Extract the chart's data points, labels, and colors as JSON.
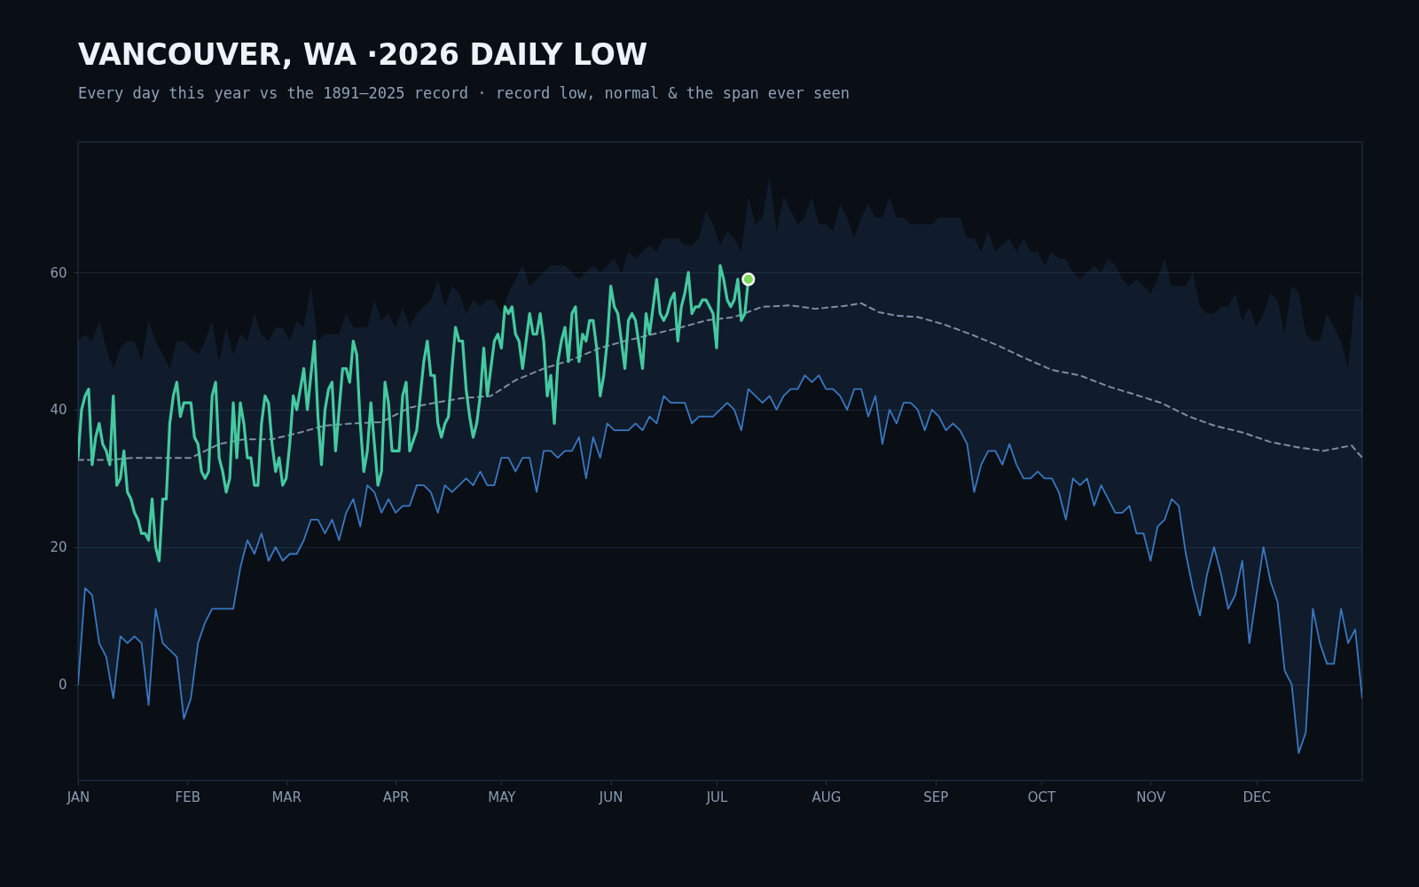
{
  "chart_data": {
    "type": "line",
    "title": "VANCOUVER, WA ·2026 DAILY LOW",
    "subtitle": "Every day this year vs the 1891–2025 record · record low, normal & the span ever seen",
    "xlim": [
      "--01-01",
      "--12-31"
    ],
    "xticks": [
      {
        "value": "--01-01",
        "label": "JAN"
      },
      {
        "value": "--02-01",
        "label": "FEB"
      },
      {
        "value": "--03-01",
        "label": "MAR"
      },
      {
        "value": "--04-01",
        "label": "APR"
      },
      {
        "value": "--05-01",
        "label": "MAY"
      },
      {
        "value": "--06-01",
        "label": "JUN"
      },
      {
        "value": "--07-01",
        "label": "JUL"
      },
      {
        "value": "--08-01",
        "label": "AUG"
      },
      {
        "value": "--09-01",
        "label": "SEP"
      },
      {
        "value": "--10-01",
        "label": "OCT"
      },
      {
        "value": "--11-01",
        "label": "NOV"
      },
      {
        "value": "--12-01",
        "label": "DEC"
      }
    ],
    "ylim": [
      -14,
      79
    ],
    "yticks": [
      0,
      20,
      40,
      60
    ],
    "grid": "y",
    "series": [
      {
        "color": "#3a78c2",
        "x": [
          "--01-01",
          "--01-03",
          "--01-05",
          "--01-07",
          "--01-09",
          "--01-11",
          "--01-13",
          "--01-15",
          "--01-17",
          "--01-19",
          "--01-21",
          "--01-23",
          "--01-25",
          "--01-27",
          "--01-29",
          "--01-31",
          "--02-02",
          "--02-04",
          "--02-06",
          "--02-08",
          "--02-10",
          "--02-12",
          "--02-14",
          "--02-16",
          "--02-18",
          "--02-20",
          "--02-22",
          "--02-24",
          "--02-26",
          "--02-28",
          "--03-02",
          "--03-04",
          "--03-06",
          "--03-08",
          "--03-10",
          "--03-12",
          "--03-14",
          "--03-16",
          "--03-18",
          "--03-20",
          "--03-22",
          "--03-24",
          "--03-26",
          "--03-28",
          "--03-30",
          "--04-01",
          "--04-03",
          "--04-05",
          "--04-07",
          "--04-09",
          "--04-11",
          "--04-13",
          "--04-15",
          "--04-17",
          "--04-19",
          "--04-21",
          "--04-23",
          "--04-25",
          "--04-27",
          "--04-29",
          "--05-01",
          "--05-03",
          "--05-05",
          "--05-07",
          "--05-09",
          "--05-11",
          "--05-13",
          "--05-15",
          "--05-17",
          "--05-19",
          "--05-21",
          "--05-23",
          "--05-25",
          "--05-27",
          "--05-29",
          "--05-31",
          "--06-02",
          "--06-04",
          "--06-06",
          "--06-08",
          "--06-10",
          "--06-12",
          "--06-14",
          "--06-16",
          "--06-18",
          "--06-20",
          "--06-22",
          "--06-24",
          "--06-26",
          "--06-28",
          "--06-30",
          "--07-02",
          "--07-04",
          "--07-06",
          "--07-08",
          "--07-10",
          "--07-12",
          "--07-14",
          "--07-16",
          "--07-18",
          "--07-20",
          "--07-22",
          "--07-24",
          "--07-26",
          "--07-28",
          "--07-30",
          "--08-01",
          "--08-03",
          "--08-05",
          "--08-07",
          "--08-09",
          "--08-11",
          "--08-13",
          "--08-15",
          "--08-17",
          "--08-19",
          "--08-21",
          "--08-23",
          "--08-25",
          "--08-27",
          "--08-29",
          "--08-31",
          "--09-02",
          "--09-04",
          "--09-06",
          "--09-08",
          "--09-10",
          "--09-12",
          "--09-14",
          "--09-16",
          "--09-18",
          "--09-20",
          "--09-22",
          "--09-24",
          "--09-26",
          "--09-28",
          "--09-30",
          "--10-02",
          "--10-04",
          "--10-06",
          "--10-08",
          "--10-10",
          "--10-12",
          "--10-14",
          "--10-16",
          "--10-18",
          "--10-20",
          "--10-22",
          "--10-24",
          "--10-26",
          "--10-28",
          "--10-30",
          "--11-01",
          "--11-03",
          "--11-05",
          "--11-07",
          "--11-09",
          "--11-11",
          "--11-13",
          "--11-15",
          "--11-17",
          "--11-19",
          "--11-21",
          "--11-23",
          "--11-25",
          "--11-27",
          "--11-29",
          "--12-01",
          "--12-03",
          "--12-05",
          "--12-07",
          "--12-09",
          "--12-11",
          "--12-13",
          "--12-15",
          "--12-17",
          "--12-19",
          "--12-21",
          "--12-23",
          "--12-25",
          "--12-27",
          "--12-29",
          "--12-31"
        ],
        "values": [
          0,
          14,
          13,
          6,
          4,
          -2,
          7,
          6,
          7,
          6,
          -3,
          11,
          6,
          5,
          4,
          -5,
          -2,
          6,
          9,
          11,
          11,
          11,
          11,
          17,
          21,
          19,
          22,
          18,
          20,
          18,
          19,
          19,
          21,
          24,
          24,
          22,
          24,
          21,
          25,
          27,
          23,
          29,
          28,
          25,
          27,
          25,
          26,
          26,
          29,
          29,
          28,
          25,
          29,
          28,
          29,
          30,
          29,
          31,
          29,
          29,
          33,
          33,
          31,
          33,
          33,
          28,
          34,
          34,
          33,
          34,
          34,
          36,
          30,
          36,
          33,
          38,
          37,
          37,
          37,
          38,
          37,
          39,
          38,
          42,
          41,
          41,
          41,
          38,
          39,
          39,
          39,
          40,
          41,
          40,
          37,
          43,
          42,
          41,
          42,
          40,
          42,
          43,
          43,
          45,
          44,
          45,
          43,
          43,
          42,
          40,
          43,
          43,
          39,
          42,
          35,
          40,
          38,
          41,
          41,
          40,
          37,
          40,
          39,
          37,
          38,
          37,
          35,
          28,
          32,
          34,
          34,
          32,
          35,
          32,
          30,
          30,
          31,
          30,
          30,
          28,
          24,
          30,
          29,
          30,
          26,
          29,
          27,
          25,
          25,
          26,
          22,
          22,
          18,
          23,
          24,
          27,
          26,
          19,
          14,
          10,
          16,
          20,
          16,
          11,
          13,
          18,
          6,
          13,
          20,
          15,
          12,
          2,
          0,
          -10,
          -7,
          11,
          6,
          3,
          3,
          11,
          6,
          8,
          -2
        ],
        "lower": [
          0,
          14,
          13,
          6,
          4,
          -2,
          7,
          6,
          7,
          6,
          -3,
          11,
          6,
          5,
          4,
          -5,
          -2,
          6,
          9,
          11,
          11,
          11,
          11,
          17,
          21,
          19,
          22,
          18,
          20,
          18,
          19,
          19,
          21,
          24,
          24,
          22,
          24,
          21,
          25,
          27,
          23,
          29,
          28,
          25,
          27,
          25,
          26,
          26,
          29,
          29,
          28,
          25,
          29,
          28,
          29,
          30,
          29,
          31,
          29,
          29,
          33,
          33,
          31,
          33,
          33,
          28,
          34,
          34,
          33,
          34,
          34,
          36,
          30,
          36,
          33,
          38,
          37,
          37,
          37,
          38,
          37,
          39,
          38,
          42,
          41,
          41,
          41,
          38,
          39,
          39,
          39,
          40,
          41,
          40,
          37,
          43,
          42,
          41,
          42,
          40,
          42,
          43,
          43,
          45,
          44,
          45,
          43,
          43,
          42,
          40,
          43,
          43,
          39,
          42,
          35,
          40,
          38,
          41,
          41,
          40,
          37,
          40,
          39,
          37,
          38,
          37,
          35,
          28,
          32,
          34,
          34,
          32,
          35,
          32,
          30,
          30,
          31,
          30,
          30,
          28,
          24,
          30,
          29,
          30,
          26,
          29,
          27,
          25,
          25,
          26,
          22,
          22,
          18,
          23,
          24,
          27,
          26,
          19,
          14,
          10,
          16,
          20,
          16,
          11,
          13,
          18,
          6,
          13,
          20,
          15,
          12,
          2,
          0,
          -10,
          -7,
          11,
          6,
          3,
          3,
          11,
          6,
          8,
          -2
        ],
        "upper": [
          50,
          51,
          50,
          53,
          49,
          46,
          49,
          50,
          50,
          47,
          53,
          50,
          48,
          46,
          50,
          50,
          49,
          48,
          50,
          53,
          47,
          52,
          48,
          51,
          50,
          54,
          51,
          50,
          52,
          52,
          50,
          53,
          52,
          58,
          50,
          51,
          51,
          51,
          54,
          52,
          52,
          52,
          56,
          53,
          54,
          52,
          55,
          52,
          54,
          55,
          56,
          59,
          55,
          58,
          57,
          54,
          56,
          55,
          56,
          56,
          54,
          57,
          59,
          61,
          58,
          59,
          60,
          61,
          61,
          61,
          60,
          59,
          60,
          61,
          60,
          61,
          62,
          60,
          63,
          62,
          63,
          64,
          63,
          65,
          65,
          65,
          64,
          64,
          65,
          69,
          67,
          64,
          66,
          65,
          63,
          71,
          67,
          68,
          74,
          66,
          71,
          69,
          67,
          68,
          71,
          67,
          67,
          66,
          70,
          68,
          65,
          68,
          70,
          68,
          68,
          71,
          68,
          68,
          67,
          67,
          67,
          67,
          68,
          68,
          68,
          68,
          65,
          65,
          63,
          66,
          63,
          64,
          65,
          63,
          65,
          63,
          63,
          61,
          63,
          62,
          62,
          60,
          59,
          60,
          61,
          60,
          62,
          61,
          59,
          58,
          59,
          58,
          57,
          59,
          62,
          58,
          58,
          58,
          60,
          55,
          54,
          54,
          55,
          55,
          57,
          53,
          55,
          52,
          54,
          57,
          56,
          51,
          58,
          57,
          51,
          50,
          50,
          54,
          52,
          50,
          46,
          57,
          56
        ]
      },
      {
        "color": "#7f8ea3",
        "line_style": "dashed",
        "x": [
          "--01-01",
          "--01-10",
          "--01-17",
          "--01-25",
          "--02-02",
          "--02-10",
          "--02-17",
          "--02-25",
          "--03-05",
          "--03-12",
          "--03-20",
          "--03-28",
          "--04-05",
          "--04-12",
          "--04-20",
          "--04-28",
          "--05-05",
          "--05-13",
          "--05-21",
          "--05-29",
          "--06-05",
          "--06-13",
          "--06-21",
          "--06-28",
          "--07-06",
          "--07-14",
          "--07-22",
          "--07-29",
          "--08-06",
          "--08-11",
          "--08-16",
          "--08-21",
          "--08-27",
          "--09-03",
          "--09-11",
          "--09-19",
          "--09-26",
          "--10-04",
          "--10-12",
          "--10-20",
          "--10-27",
          "--11-04",
          "--11-12",
          "--11-19",
          "--11-27",
          "--12-05",
          "--12-13",
          "--12-20",
          "--12-28",
          "--12-31"
        ],
        "values": [
          32.7,
          32.7,
          33,
          33,
          33,
          35,
          35.7,
          35.7,
          36.7,
          37.7,
          38,
          38.2,
          40.3,
          41,
          41.7,
          42,
          44.3,
          46,
          47.3,
          49,
          50,
          51,
          52,
          53,
          53.5,
          55,
          55.2,
          54.7,
          55.1,
          55.5,
          54.2,
          53.7,
          53.5,
          52.5,
          51,
          49.3,
          47.6,
          45.8,
          45,
          43.4,
          42.3,
          41,
          39,
          37.7,
          36.7,
          35.3,
          34.5,
          34,
          34.8,
          33
        ]
      },
      {
        "color": "#45c9a0",
        "x": [
          "--01-01",
          "--01-02",
          "--01-03",
          "--01-04",
          "--01-05",
          "--01-06",
          "--01-07",
          "--01-08",
          "--01-09",
          "--01-10",
          "--01-11",
          "--01-12",
          "--01-13",
          "--01-14",
          "--01-15",
          "--01-16",
          "--01-17",
          "--01-18",
          "--01-19",
          "--01-20",
          "--01-21",
          "--01-22",
          "--01-23",
          "--01-24",
          "--01-25",
          "--01-26",
          "--01-27",
          "--01-28",
          "--01-29",
          "--01-30",
          "--01-31",
          "--02-02",
          "--02-03",
          "--02-04",
          "--02-05",
          "--02-06",
          "--02-07",
          "--02-08",
          "--02-09",
          "--02-10",
          "--02-11",
          "--02-12",
          "--02-13",
          "--02-14",
          "--02-15",
          "--02-16",
          "--02-17",
          "--02-18",
          "--02-19",
          "--02-20",
          "--02-21",
          "--02-22",
          "--02-23",
          "--02-24",
          "--02-25",
          "--02-26",
          "--02-27",
          "--02-28",
          "--03-01",
          "--03-02",
          "--03-03",
          "--03-04",
          "--03-06",
          "--03-07",
          "--03-08",
          "--03-09",
          "--03-10",
          "--03-11",
          "--03-12",
          "--03-13",
          "--03-14",
          "--03-15",
          "--03-16",
          "--03-17",
          "--03-18",
          "--03-19",
          "--03-20",
          "--03-21",
          "--03-22",
          "--03-23",
          "--03-24",
          "--03-25",
          "--03-26",
          "--03-27",
          "--03-28",
          "--03-29",
          "--03-30",
          "--03-31",
          "--04-01",
          "--04-02",
          "--04-03",
          "--04-04",
          "--04-05",
          "--04-07",
          "--04-08",
          "--04-09",
          "--04-10",
          "--04-11",
          "--04-12",
          "--04-13",
          "--04-14",
          "--04-15",
          "--04-16",
          "--04-17",
          "--04-18",
          "--04-19",
          "--04-20",
          "--04-21",
          "--04-22",
          "--04-23",
          "--04-24",
          "--04-25",
          "--04-26",
          "--04-27",
          "--04-28",
          "--04-29",
          "--04-30",
          "--05-01",
          "--05-02",
          "--05-03",
          "--05-04",
          "--05-05",
          "--05-06",
          "--05-07",
          "--05-09",
          "--05-10",
          "--05-11",
          "--05-12",
          "--05-13",
          "--05-14",
          "--05-15",
          "--05-16",
          "--05-17",
          "--05-18",
          "--05-19",
          "--05-20",
          "--05-21",
          "--05-22",
          "--05-23",
          "--05-24",
          "--05-25",
          "--05-26",
          "--05-27",
          "--05-28",
          "--05-29",
          "--05-30",
          "--05-31",
          "--06-01",
          "--06-02",
          "--06-03",
          "--06-04",
          "--06-05",
          "--06-06",
          "--06-07",
          "--06-08",
          "--06-10",
          "--06-11",
          "--06-12",
          "--06-13",
          "--06-14",
          "--06-15",
          "--06-16",
          "--06-17",
          "--06-18",
          "--06-19",
          "--06-20",
          "--06-21",
          "--06-22",
          "--06-23",
          "--06-24",
          "--06-25",
          "--06-26",
          "--06-27",
          "--06-28",
          "--06-29",
          "--06-30",
          "--07-01",
          "--07-02",
          "--07-03",
          "--07-04",
          "--07-05",
          "--07-06",
          "--07-07",
          "--07-08",
          "--07-09",
          "--07-10"
        ],
        "values": [
          33,
          40,
          42,
          43,
          32,
          36,
          38,
          35,
          34,
          32,
          42,
          29,
          30,
          34,
          28,
          27,
          25,
          24,
          22,
          22,
          21,
          27,
          20,
          18,
          27,
          27,
          38,
          42,
          44,
          39,
          41,
          41,
          36,
          35,
          31,
          30,
          31,
          42,
          44,
          33,
          31,
          28,
          30,
          41,
          33,
          41,
          38,
          33,
          33,
          29,
          29,
          38,
          42,
          41,
          35,
          31,
          33,
          29,
          30,
          35,
          42,
          40,
          46,
          40,
          45,
          50,
          39,
          32,
          40,
          43,
          44,
          34,
          40,
          46,
          46,
          44,
          50,
          48,
          38,
          31,
          34,
          41,
          35,
          29,
          31,
          44,
          41,
          34,
          34,
          34,
          42,
          44,
          34,
          37,
          42,
          47,
          50,
          45,
          45,
          38,
          36,
          38,
          39,
          46,
          52,
          50,
          50,
          43,
          39,
          36,
          38,
          42,
          49,
          42,
          46,
          50,
          51,
          49,
          55,
          54,
          55,
          51,
          50,
          46,
          54,
          51,
          51,
          54,
          50,
          42,
          45,
          38,
          47,
          50,
          52,
          47,
          54,
          55,
          47,
          51,
          50,
          53,
          53,
          49,
          42,
          45,
          50,
          58,
          55,
          54,
          50,
          46,
          53,
          54,
          53,
          46,
          54,
          51,
          55,
          59,
          54,
          53,
          54,
          56,
          57,
          50,
          55,
          57,
          60,
          54,
          55,
          55,
          56,
          56,
          55,
          54,
          49,
          61,
          59,
          56,
          55,
          56,
          59,
          53,
          54,
          59
        ]
      },
      {
        "type": "scatter",
        "color": "#7ed957",
        "marker": "circle",
        "x": [
          "--07-10"
        ],
        "values": [
          59
        ]
      }
    ]
  }
}
